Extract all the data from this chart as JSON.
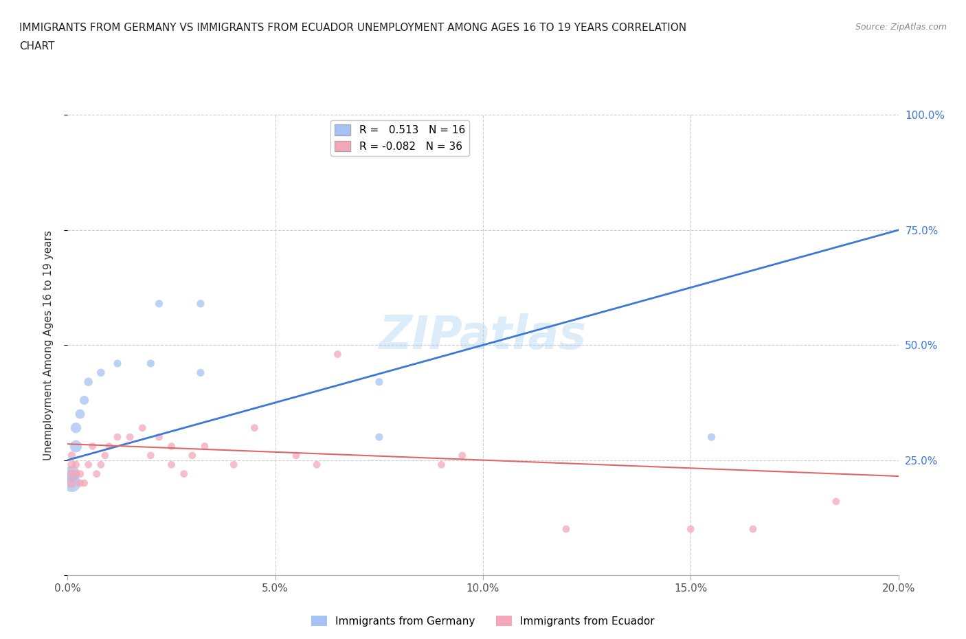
{
  "title_line1": "IMMIGRANTS FROM GERMANY VS IMMIGRANTS FROM ECUADOR UNEMPLOYMENT AMONG AGES 16 TO 19 YEARS CORRELATION",
  "title_line2": "CHART",
  "source": "Source: ZipAtlas.com",
  "ylabel": "Unemployment Among Ages 16 to 19 years",
  "xlim": [
    0.0,
    0.2
  ],
  "ylim": [
    0.0,
    1.0
  ],
  "xtick_vals": [
    0.0,
    0.05,
    0.1,
    0.15,
    0.2
  ],
  "xtick_labels": [
    "0.0%",
    "5.0%",
    "10.0%",
    "15.0%",
    "20.0%"
  ],
  "ytick_vals": [
    0.0,
    0.25,
    0.5,
    0.75,
    1.0
  ],
  "right_ytick_labels": [
    "",
    "25.0%",
    "50.0%",
    "75.0%",
    "100.0%"
  ],
  "germany_color": "#a4c2f4",
  "ecuador_color": "#f4a7b9",
  "germany_line_color": "#3c78d8",
  "ecuador_line_color": "#e06666",
  "germany_R": 0.513,
  "germany_N": 16,
  "ecuador_R": -0.082,
  "ecuador_N": 36,
  "germany_line_x0": 0.0,
  "germany_line_y0": 0.25,
  "germany_line_x1": 0.2,
  "germany_line_y1": 0.75,
  "ecuador_line_x0": 0.0,
  "ecuador_line_y0": 0.285,
  "ecuador_line_x1": 0.2,
  "ecuador_line_y1": 0.215,
  "germany_x": [
    0.001,
    0.001,
    0.002,
    0.002,
    0.003,
    0.004,
    0.005,
    0.008,
    0.012,
    0.02,
    0.022,
    0.032,
    0.032,
    0.075,
    0.075,
    0.155
  ],
  "germany_y": [
    0.2,
    0.22,
    0.28,
    0.32,
    0.35,
    0.38,
    0.42,
    0.44,
    0.46,
    0.46,
    0.59,
    0.59,
    0.44,
    0.42,
    0.3,
    0.3
  ],
  "germany_s": [
    350,
    280,
    160,
    120,
    100,
    90,
    80,
    70,
    65,
    65,
    65,
    65,
    65,
    65,
    65,
    65
  ],
  "ecuador_x": [
    0.001,
    0.001,
    0.001,
    0.001,
    0.002,
    0.002,
    0.003,
    0.003,
    0.004,
    0.005,
    0.006,
    0.007,
    0.008,
    0.009,
    0.01,
    0.012,
    0.015,
    0.018,
    0.02,
    0.022,
    0.025,
    0.025,
    0.028,
    0.03,
    0.033,
    0.04,
    0.045,
    0.055,
    0.06,
    0.065,
    0.09,
    0.095,
    0.12,
    0.15,
    0.165,
    0.185
  ],
  "ecuador_y": [
    0.2,
    0.22,
    0.24,
    0.26,
    0.22,
    0.24,
    0.2,
    0.22,
    0.2,
    0.24,
    0.28,
    0.22,
    0.24,
    0.26,
    0.28,
    0.3,
    0.3,
    0.32,
    0.26,
    0.3,
    0.24,
    0.28,
    0.22,
    0.26,
    0.28,
    0.24,
    0.32,
    0.26,
    0.24,
    0.48,
    0.24,
    0.26,
    0.1,
    0.1,
    0.1,
    0.16
  ],
  "ecuador_s": [
    100,
    90,
    80,
    70,
    70,
    65,
    65,
    65,
    60,
    60,
    60,
    60,
    60,
    60,
    60,
    60,
    60,
    60,
    60,
    60,
    60,
    60,
    60,
    60,
    60,
    60,
    60,
    60,
    60,
    60,
    60,
    60,
    60,
    60,
    60,
    60
  ],
  "watermark": "ZIPatlas",
  "background_color": "#ffffff",
  "grid_color": "#cccccc",
  "legend1_label_germany": "R =   0.513   N = 16",
  "legend1_label_ecuador": "R = -0.082   N = 36",
  "legend2_label_germany": "Immigrants from Germany",
  "legend2_label_ecuador": "Immigrants from Ecuador"
}
